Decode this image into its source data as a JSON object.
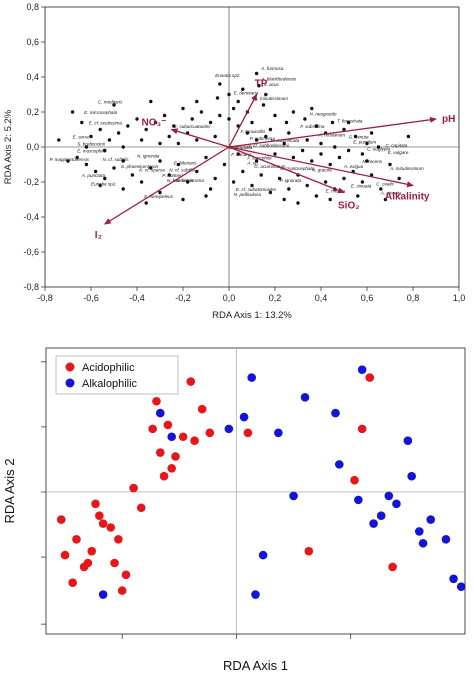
{
  "chart_data": [
    {
      "type": "scatter",
      "title": "",
      "xlabel": "RDA Axis 1: 13.2%",
      "ylabel": "RDA Axis 2: 5.2%",
      "xlim": [
        -0.8,
        1.0
      ],
      "ylim": [
        -0.8,
        0.8
      ],
      "xticks": [
        "-0,8",
        "-0,6",
        "-0,4",
        "-0,2",
        "0,0",
        "0,2",
        "0,4",
        "0,6",
        "0,8",
        "1,0"
      ],
      "yticks": [
        "0,8",
        "0,6",
        "0,4",
        "0,2",
        "0,0",
        "-0,2",
        "-0,4",
        "-0,6",
        "-0,8"
      ],
      "grid": false,
      "vector_color": "#a01c3c",
      "vectors": [
        {
          "name": "pH",
          "x": 0.9,
          "y": 0.16
        },
        {
          "name": "Alkalinity",
          "x": 0.8,
          "y": -0.22
        },
        {
          "name": "SiO₂",
          "x": 0.5,
          "y": -0.26
        },
        {
          "name": "TP",
          "x": 0.12,
          "y": 0.3
        },
        {
          "name": "NO₃⁻",
          "x": -0.25,
          "y": 0.1
        },
        {
          "name": "I₂",
          "x": -0.54,
          "y": -0.44
        }
      ],
      "species_labels": [
        {
          "text": "A. formosa",
          "x": 0.14,
          "y": 0.44
        },
        {
          "text": "A. blackfordensis",
          "x": 0.14,
          "y": 0.38
        },
        {
          "text": "Eunotia sp2.",
          "x": -0.06,
          "y": 0.4
        },
        {
          "text": "S. acus",
          "x": 0.15,
          "y": 0.35
        },
        {
          "text": "E. denotaria",
          "x": 0.02,
          "y": 0.3
        },
        {
          "text": "A. minutissimum",
          "x": 0.11,
          "y": 0.27
        },
        {
          "text": "C. meditaris",
          "x": -0.57,
          "y": 0.25
        },
        {
          "text": "E. microcephala",
          "x": -0.63,
          "y": 0.19
        },
        {
          "text": "E. cf. scutissima",
          "x": -0.61,
          "y": 0.13
        },
        {
          "text": "N. neogracile",
          "x": 0.35,
          "y": 0.18
        },
        {
          "text": "T. fenestrata",
          "x": 0.47,
          "y": 0.14
        },
        {
          "text": "F. subsalina",
          "x": 0.31,
          "y": 0.11
        },
        {
          "text": "E. subarcuatoides",
          "x": -0.24,
          "y": 0.11
        },
        {
          "text": "E. serra",
          "x": -0.68,
          "y": 0.05
        },
        {
          "text": "S. brebissonii",
          "x": -0.66,
          "y": 0.01
        },
        {
          "text": "E. muscophila",
          "x": -0.66,
          "y": -0.03
        },
        {
          "text": "F. tenuicollis",
          "x": 0.05,
          "y": 0.08
        },
        {
          "text": "P. submersa",
          "x": 0.09,
          "y": 0.04
        },
        {
          "text": "N. cf. subbrebissonii",
          "x": 0.08,
          "y": 0.0
        },
        {
          "text": "E. biradiata",
          "x": 0.0,
          "y": -0.01
        },
        {
          "text": "N. subrostrata",
          "x": 0.18,
          "y": 0.03
        },
        {
          "text": "A. rhodanum",
          "x": 0.39,
          "y": 0.06
        },
        {
          "text": "G. minuta",
          "x": 0.52,
          "y": 0.05
        },
        {
          "text": "E. pumilum",
          "x": 0.54,
          "y": 0.02
        },
        {
          "text": "C. capitata",
          "x": 0.68,
          "y": 0.0
        },
        {
          "text": "C. euglypta",
          "x": 0.6,
          "y": -0.02
        },
        {
          "text": "F. nanana",
          "x": 0.01,
          "y": -0.05
        },
        {
          "text": "P. mapplestonensis",
          "x": -0.78,
          "y": -0.08
        },
        {
          "text": "N. cf. subtilis",
          "x": -0.55,
          "y": -0.08
        },
        {
          "text": "N. ignorata",
          "x": -0.4,
          "y": -0.06
        },
        {
          "text": "S. phoenicenteron",
          "x": -0.47,
          "y": -0.12
        },
        {
          "text": "K. cf. sparsa",
          "x": -0.39,
          "y": -0.14
        },
        {
          "text": "E. bilunaris",
          "x": -0.24,
          "y": -0.1
        },
        {
          "text": "N. cf. subtilis",
          "x": -0.26,
          "y": -0.14
        },
        {
          "text": "F. saxophila",
          "x": 0.08,
          "y": -0.07
        },
        {
          "text": "A. sp.",
          "x": 0.08,
          "y": -0.1
        },
        {
          "text": "G. acuminatum",
          "x": 0.11,
          "y": -0.12
        },
        {
          "text": "N. cryptocephala",
          "x": 0.22,
          "y": -0.13
        },
        {
          "text": "N. gracilis",
          "x": 0.36,
          "y": -0.14
        },
        {
          "text": "A. exigua",
          "x": 0.5,
          "y": -0.12
        },
        {
          "text": "N. recens",
          "x": 0.58,
          "y": -0.09
        },
        {
          "text": "E. vulgare",
          "x": 0.69,
          "y": -0.04
        },
        {
          "text": "A. minutissimum",
          "x": 0.7,
          "y": -0.13
        },
        {
          "text": "E. sinuata",
          "x": 0.53,
          "y": -0.23
        },
        {
          "text": "C. ovalis",
          "x": 0.64,
          "y": -0.22
        },
        {
          "text": "A. pinnata",
          "x": 0.66,
          "y": -0.27
        },
        {
          "text": "A. punctata",
          "x": -0.64,
          "y": -0.17
        },
        {
          "text": "Eunotia sp2.",
          "x": -0.6,
          "y": -0.22
        },
        {
          "text": "P. hottneri",
          "x": -0.29,
          "y": -0.17
        },
        {
          "text": "N. brevissima",
          "x": -0.23,
          "y": -0.2
        },
        {
          "text": "S. hemipeleus",
          "x": -0.37,
          "y": -0.29
        },
        {
          "text": "E. cf. subatomoides",
          "x": 0.03,
          "y": -0.25
        },
        {
          "text": "N. haueriana",
          "x": -0.27,
          "y": -0.2
        },
        {
          "text": "P. ignorata",
          "x": 0.22,
          "y": -0.2
        },
        {
          "text": "E. minuta",
          "x": 0.42,
          "y": -0.26
        },
        {
          "text": "N. pelliculosa",
          "x": 0.02,
          "y": -0.28
        }
      ],
      "points": [
        [
          0.13,
          0.35
        ],
        [
          0.12,
          0.42
        ],
        [
          0.06,
          0.33
        ],
        [
          0.0,
          0.3
        ],
        [
          -0.05,
          0.28
        ],
        [
          0.02,
          0.22
        ],
        [
          0.08,
          0.2
        ],
        [
          0.15,
          0.24
        ],
        [
          0.2,
          0.18
        ],
        [
          0.25,
          0.14
        ],
        [
          0.28,
          0.2
        ],
        [
          0.33,
          0.16
        ],
        [
          0.38,
          0.12
        ],
        [
          0.42,
          0.08
        ],
        [
          0.45,
          0.14
        ],
        [
          0.5,
          0.1
        ],
        [
          0.55,
          0.06
        ],
        [
          0.6,
          0.02
        ],
        [
          0.65,
          0.0
        ],
        [
          0.58,
          -0.04
        ],
        [
          0.52,
          -0.02
        ],
        [
          0.48,
          -0.06
        ],
        [
          0.44,
          -0.1
        ],
        [
          0.4,
          -0.04
        ],
        [
          0.36,
          -0.08
        ],
        [
          0.32,
          -0.02
        ],
        [
          0.28,
          -0.06
        ],
        [
          0.24,
          0.02
        ],
        [
          0.2,
          -0.04
        ],
        [
          0.16,
          0.06
        ],
        [
          0.12,
          0.04
        ],
        [
          0.08,
          0.08
        ],
        [
          0.04,
          0.12
        ],
        [
          0.0,
          0.16
        ],
        [
          -0.04,
          0.18
        ],
        [
          -0.08,
          0.14
        ],
        [
          -0.12,
          0.2
        ],
        [
          -0.16,
          0.16
        ],
        [
          -0.2,
          0.22
        ],
        [
          -0.24,
          0.12
        ],
        [
          -0.28,
          0.18
        ],
        [
          -0.32,
          0.14
        ],
        [
          -0.36,
          0.1
        ],
        [
          -0.4,
          0.16
        ],
        [
          -0.44,
          0.12
        ],
        [
          -0.48,
          0.08
        ],
        [
          -0.52,
          0.04
        ],
        [
          -0.56,
          0.1
        ],
        [
          -0.6,
          0.06
        ],
        [
          -0.64,
          0.14
        ],
        [
          -0.66,
          -0.06
        ],
        [
          -0.62,
          -0.1
        ],
        [
          -0.58,
          -0.14
        ],
        [
          -0.54,
          -0.18
        ],
        [
          -0.5,
          -0.12
        ],
        [
          -0.46,
          -0.08
        ],
        [
          -0.42,
          -0.16
        ],
        [
          -0.38,
          -0.2
        ],
        [
          -0.34,
          -0.12
        ],
        [
          -0.3,
          -0.08
        ],
        [
          -0.26,
          -0.16
        ],
        [
          -0.22,
          -0.1
        ],
        [
          -0.18,
          -0.2
        ],
        [
          -0.14,
          -0.14
        ],
        [
          -0.1,
          -0.06
        ],
        [
          -0.06,
          -0.18
        ],
        [
          -0.02,
          -0.1
        ],
        [
          0.02,
          -0.2
        ],
        [
          0.06,
          -0.14
        ],
        [
          0.1,
          -0.22
        ],
        [
          0.14,
          -0.16
        ],
        [
          0.18,
          -0.26
        ],
        [
          0.22,
          -0.18
        ],
        [
          0.26,
          -0.24
        ],
        [
          0.3,
          -0.16
        ],
        [
          0.34,
          -0.22
        ],
        [
          0.38,
          -0.28
        ],
        [
          0.42,
          -0.2
        ],
        [
          0.46,
          -0.24
        ],
        [
          0.5,
          -0.18
        ],
        [
          0.54,
          -0.14
        ],
        [
          0.58,
          -0.2
        ],
        [
          0.62,
          -0.16
        ],
        [
          0.66,
          -0.24
        ],
        [
          0.7,
          -0.1
        ],
        [
          0.68,
          -0.3
        ],
        [
          0.56,
          -0.28
        ],
        [
          0.44,
          -0.3
        ],
        [
          -0.1,
          -0.28
        ],
        [
          -0.2,
          -0.3
        ],
        [
          -0.3,
          -0.26
        ],
        [
          -0.36,
          -0.32
        ],
        [
          -0.46,
          -0.24
        ],
        [
          -0.56,
          -0.22
        ],
        [
          -0.7,
          -0.08
        ],
        [
          -0.74,
          0.04
        ],
        [
          -0.68,
          0.2
        ],
        [
          -0.5,
          0.24
        ],
        [
          -0.34,
          0.26
        ],
        [
          -0.14,
          0.26
        ],
        [
          0.04,
          0.26
        ],
        [
          0.1,
          0.14
        ],
        [
          0.18,
          0.1
        ],
        [
          0.26,
          0.08
        ],
        [
          0.34,
          0.04
        ],
        [
          0.46,
          0.0
        ],
        [
          0.62,
          0.08
        ],
        [
          -0.06,
          0.06
        ],
        [
          -0.14,
          0.04
        ],
        [
          -0.22,
          0.02
        ],
        [
          -0.3,
          0.02
        ],
        [
          -0.38,
          0.04
        ],
        [
          -0.46,
          0.0
        ],
        [
          -0.54,
          -0.02
        ],
        [
          -0.62,
          0.0
        ],
        [
          0.04,
          -0.04
        ],
        [
          0.12,
          -0.08
        ],
        [
          -0.08,
          -0.24
        ],
        [
          0.24,
          -0.3
        ],
        [
          0.3,
          -0.32
        ],
        [
          -0.04,
          0.36
        ],
        [
          0.16,
          0.3
        ],
        [
          -0.18,
          0.08
        ],
        [
          -0.26,
          0.06
        ],
        [
          0.36,
          0.22
        ],
        [
          0.4,
          0.02
        ],
        [
          0.52,
          0.14
        ],
        [
          0.6,
          -0.08
        ],
        [
          0.74,
          -0.18
        ],
        [
          0.78,
          0.06
        ]
      ]
    },
    {
      "type": "scatter",
      "title": "",
      "xlabel": "RDA Axis 1",
      "ylabel": "RDA Axis 2",
      "grid": false,
      "legend_position": "top-left",
      "series": [
        {
          "name": "Acidophilic",
          "color": "#e8161b",
          "points": [
            [
              -0.92,
              0.58
            ],
            [
              -0.9,
              0.4
            ],
            [
              -0.86,
              0.26
            ],
            [
              -0.84,
              0.48
            ],
            [
              -0.8,
              0.34
            ],
            [
              -0.78,
              0.36
            ],
            [
              -0.76,
              0.42
            ],
            [
              -0.74,
              0.66
            ],
            [
              -0.72,
              0.6
            ],
            [
              -0.7,
              0.56
            ],
            [
              -0.66,
              0.54
            ],
            [
              -0.64,
              0.36
            ],
            [
              -0.62,
              0.48
            ],
            [
              -0.6,
              0.22
            ],
            [
              -0.58,
              0.3
            ],
            [
              -0.54,
              0.74
            ],
            [
              -0.5,
              0.64
            ],
            [
              -0.46,
              1.3
            ],
            [
              -0.44,
              1.04
            ],
            [
              -0.42,
              1.18
            ],
            [
              -0.4,
              0.92
            ],
            [
              -0.38,
              0.8
            ],
            [
              -0.36,
              1.06
            ],
            [
              -0.34,
              0.84
            ],
            [
              -0.32,
              0.9
            ],
            [
              -0.28,
              1.0
            ],
            [
              -0.24,
              1.28
            ],
            [
              -0.22,
              0.98
            ],
            [
              -0.18,
              1.14
            ],
            [
              -0.14,
              1.02
            ],
            [
              0.06,
              1.02
            ],
            [
              0.38,
              0.42
            ],
            [
              0.62,
              0.78
            ],
            [
              0.66,
              1.04
            ],
            [
              0.7,
              1.3
            ],
            [
              0.82,
              0.34
            ]
          ]
        },
        {
          "name": "Alkalophilic",
          "color": "#1414d8",
          "points": [
            [
              -0.7,
              0.2
            ],
            [
              -0.4,
              1.12
            ],
            [
              -0.34,
              1.0
            ],
            [
              -0.04,
              1.04
            ],
            [
              0.04,
              1.1
            ],
            [
              0.08,
              1.3
            ],
            [
              0.1,
              0.2
            ],
            [
              0.14,
              0.4
            ],
            [
              0.22,
              1.02
            ],
            [
              0.3,
              0.7
            ],
            [
              0.36,
              1.2
            ],
            [
              0.52,
              1.12
            ],
            [
              0.54,
              0.86
            ],
            [
              0.64,
              0.68
            ],
            [
              0.66,
              1.34
            ],
            [
              0.72,
              0.56
            ],
            [
              0.76,
              0.6
            ],
            [
              0.8,
              0.7
            ],
            [
              0.84,
              0.66
            ],
            [
              0.9,
              0.98
            ],
            [
              0.92,
              0.8
            ],
            [
              0.96,
              0.52
            ],
            [
              0.98,
              0.46
            ],
            [
              1.02,
              0.58
            ],
            [
              1.1,
              0.48
            ],
            [
              1.14,
              0.28
            ],
            [
              1.18,
              0.24
            ]
          ]
        }
      ]
    }
  ]
}
